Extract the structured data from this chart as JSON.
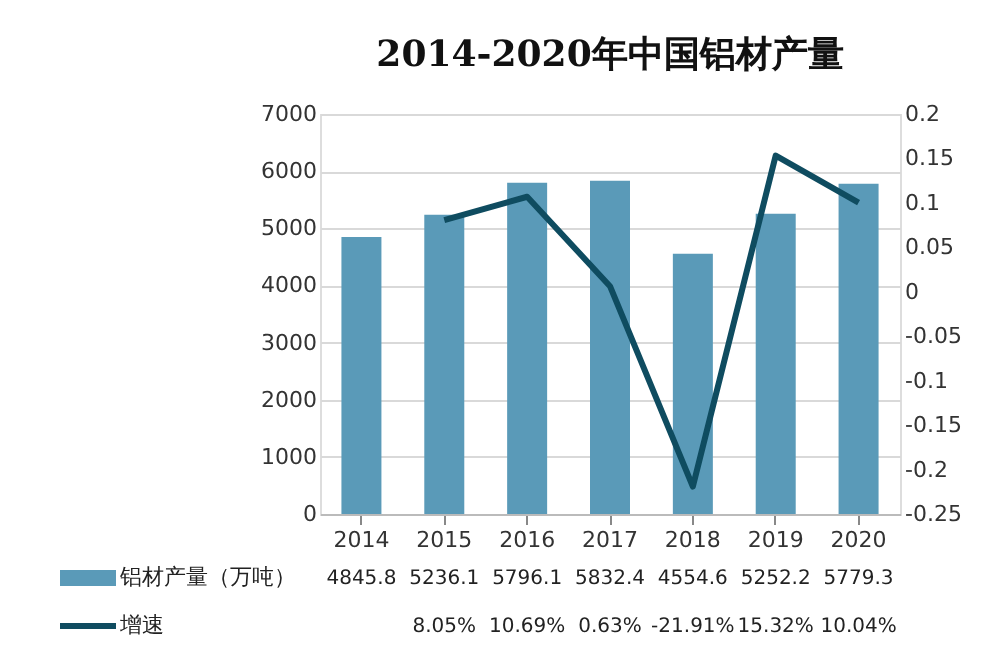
{
  "chart_data": {
    "type": "bar",
    "title": "2014-2020年中国铝材产量",
    "categories": [
      "2014",
      "2015",
      "2016",
      "2017",
      "2018",
      "2019",
      "2020"
    ],
    "series": [
      {
        "name": "铝材产量（万吨）",
        "color": "#5a9ab8",
        "values": [
          4845.8,
          5236.1,
          5796.1,
          5832.4,
          4554.6,
          5252.2,
          5779.3
        ],
        "value_labels": [
          "4845.8",
          "5236.1",
          "5796.1",
          "5832.4",
          "4554.6",
          "5252.2",
          "5779.3"
        ]
      },
      {
        "name": "增速",
        "type": "line",
        "axis": "y2",
        "color": "#0f4c60",
        "values": [
          null,
          0.0805,
          0.1069,
          0.0063,
          -0.2191,
          0.1532,
          0.1004
        ],
        "value_labels": [
          null,
          "8.05%",
          "10.69%",
          "0.63%",
          "-21.91%",
          "15.32%",
          "10.04%"
        ]
      }
    ],
    "ylim": [
      0,
      7000
    ],
    "yticks": [
      0,
      1000,
      2000,
      3000,
      4000,
      5000,
      6000,
      7000
    ],
    "y2lim": [
      -0.25,
      0.2
    ],
    "y2ticks": [
      -0.25,
      -0.2,
      -0.15,
      -0.1,
      -0.05,
      0,
      0.05,
      0.1,
      0.15,
      0.2
    ],
    "grid": "y",
    "legend": "bottom"
  }
}
